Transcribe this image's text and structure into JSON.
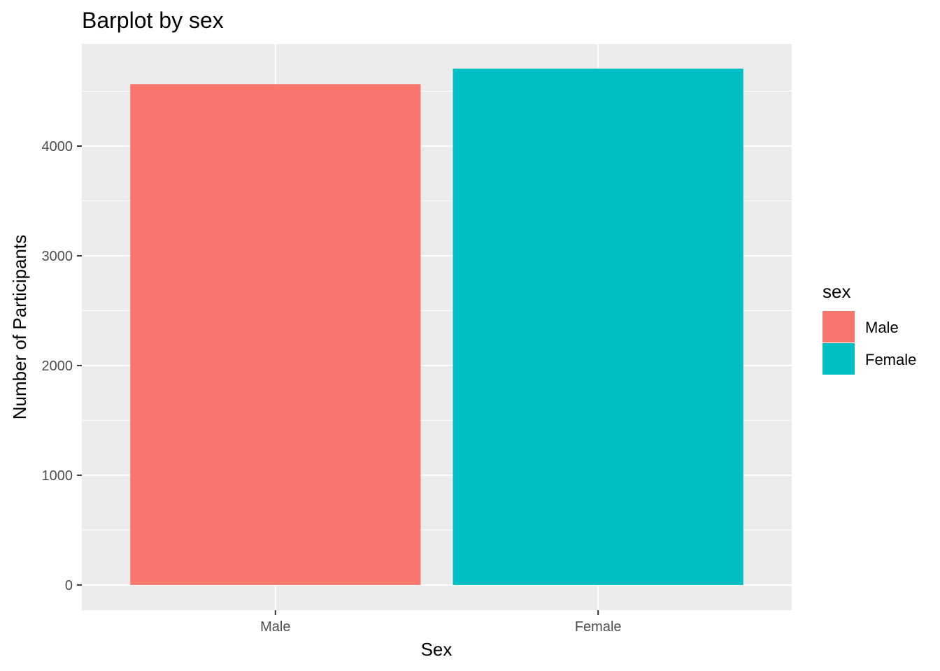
{
  "chart_data": {
    "type": "bar",
    "title": "Barplot by sex",
    "xlabel": "Sex",
    "ylabel": "Number of Participants",
    "categories": [
      "Male",
      "Female"
    ],
    "values": [
      4565,
      4705
    ],
    "ylim": [
      -230,
      4930
    ],
    "yticks": [
      "0",
      "1000",
      "2000",
      "3000",
      "4000"
    ],
    "grid": true,
    "legend": {
      "title": "sex",
      "placement": "right",
      "entries": [
        "Male",
        "Female"
      ]
    },
    "colors": {
      "Male": "#F8766D",
      "Female": "#00BFC4",
      "panel_background": "#EBEBEB",
      "gridline": "#FFFFFF"
    }
  }
}
